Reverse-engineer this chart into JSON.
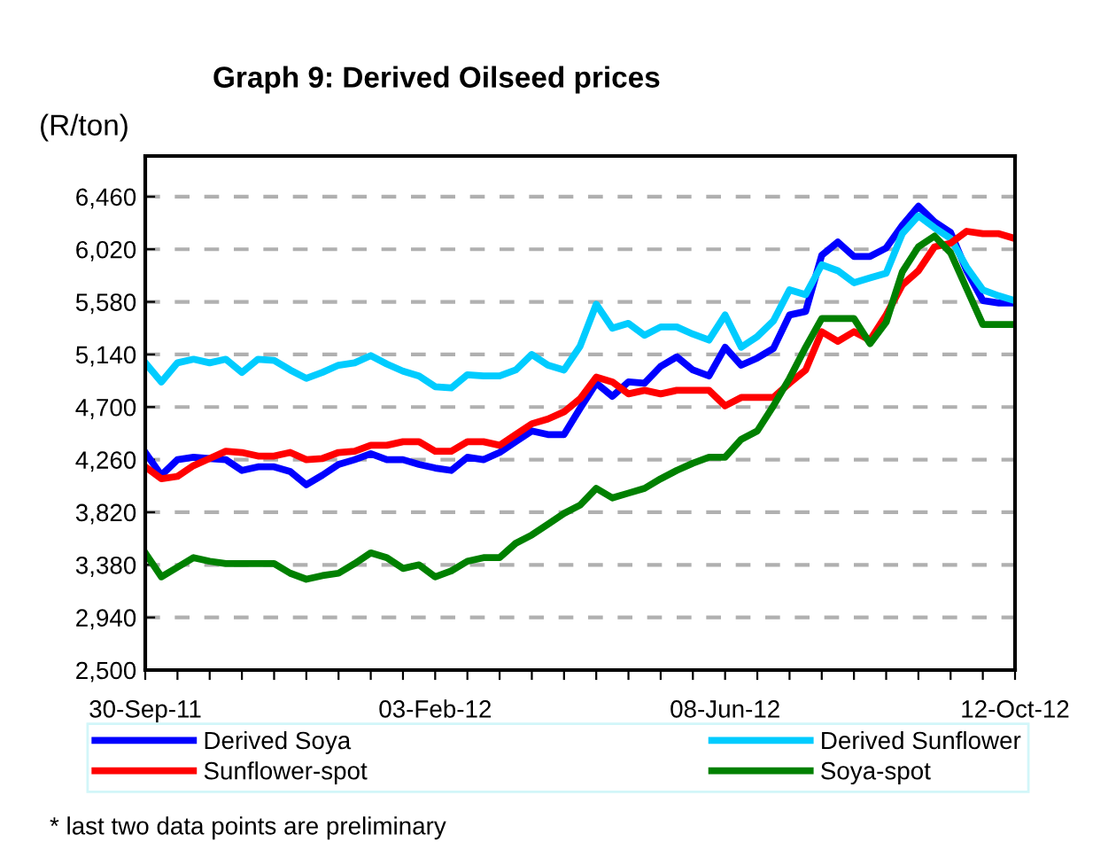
{
  "chart_data": {
    "type": "line",
    "title": "Graph 9: Derived Oilseed prices",
    "ylabel": "(R/ton)",
    "categories": [
      "30-Sep-11",
      null,
      null,
      null,
      null,
      null,
      null,
      null,
      null,
      null,
      null,
      null,
      null,
      null,
      null,
      null,
      null,
      null,
      "03-Feb-12",
      null,
      null,
      null,
      null,
      null,
      null,
      null,
      null,
      null,
      null,
      null,
      null,
      null,
      null,
      null,
      null,
      null,
      "08-Jun-12",
      null,
      null,
      null,
      null,
      null,
      null,
      null,
      null,
      null,
      null,
      null,
      null,
      null,
      null,
      null,
      null,
      null,
      "12-Oct-12"
    ],
    "series": [
      {
        "name": "Derived Soya",
        "color": "#0000ff",
        "values": [
          4320,
          4130,
          4260,
          4280,
          4270,
          4260,
          4170,
          4200,
          4200,
          4160,
          4050,
          4130,
          4220,
          4260,
          4310,
          4260,
          4260,
          4220,
          4190,
          4170,
          4280,
          4260,
          4320,
          4410,
          4500,
          4470,
          4470,
          4690,
          4900,
          4790,
          4910,
          4900,
          5040,
          5120,
          5010,
          4960,
          5200,
          5050,
          5110,
          5190,
          5470,
          5500,
          5970,
          6080,
          5960,
          5960,
          6030,
          6220,
          6380,
          6250,
          6160,
          5840,
          5590,
          5570,
          5570
        ]
      },
      {
        "name": "Derived Sunflower",
        "color": "#00ccff",
        "values": [
          5070,
          4910,
          5070,
          5100,
          5070,
          5100,
          4990,
          5100,
          5090,
          5010,
          4940,
          4990,
          5050,
          5070,
          5130,
          5060,
          5000,
          4960,
          4870,
          4860,
          4970,
          4960,
          4960,
          5010,
          5140,
          5050,
          5010,
          5210,
          5560,
          5360,
          5400,
          5300,
          5370,
          5370,
          5310,
          5260,
          5470,
          5200,
          5290,
          5420,
          5680,
          5640,
          5890,
          5840,
          5740,
          5780,
          5820,
          6150,
          6300,
          6200,
          6110,
          5870,
          5680,
          5630,
          5590
        ]
      },
      {
        "name": "Sunflower-spot",
        "color": "#ff0000",
        "values": [
          4200,
          4100,
          4120,
          4210,
          4270,
          4330,
          4320,
          4290,
          4290,
          4320,
          4260,
          4270,
          4320,
          4330,
          4380,
          4380,
          4410,
          4410,
          4330,
          4330,
          4410,
          4410,
          4380,
          4470,
          4560,
          4600,
          4660,
          4770,
          4950,
          4910,
          4810,
          4840,
          4810,
          4840,
          4840,
          4840,
          4710,
          4780,
          4780,
          4780,
          4900,
          5010,
          5330,
          5250,
          5330,
          5260,
          5470,
          5720,
          5840,
          6040,
          6070,
          6170,
          6150,
          6150,
          6110
        ]
      },
      {
        "name": "Soya-spot",
        "color": "#008000",
        "values": [
          3480,
          3280,
          3360,
          3440,
          3410,
          3390,
          3390,
          3390,
          3390,
          3310,
          3260,
          3290,
          3310,
          3390,
          3480,
          3440,
          3350,
          3380,
          3280,
          3330,
          3410,
          3440,
          3440,
          3560,
          3630,
          3720,
          3810,
          3880,
          4020,
          3940,
          3980,
          4020,
          4100,
          4170,
          4230,
          4280,
          4280,
          4430,
          4500,
          4710,
          4940,
          5200,
          5440,
          5440,
          5440,
          5230,
          5410,
          5830,
          6040,
          6130,
          5990,
          5690,
          5390,
          5390,
          5390
        ]
      }
    ],
    "ylim": [
      2500,
      6800
    ],
    "yticks": [
      {
        "value": 2500,
        "label": "2,500"
      },
      {
        "value": 2940,
        "label": "2,940"
      },
      {
        "value": 3380,
        "label": "3,380"
      },
      {
        "value": 3820,
        "label": "3,820"
      },
      {
        "value": 4260,
        "label": "4,260"
      },
      {
        "value": 4700,
        "label": "4,700"
      },
      {
        "value": 5140,
        "label": "5,140"
      },
      {
        "value": 5580,
        "label": "5,580"
      },
      {
        "value": 6020,
        "label": "6,020"
      },
      {
        "value": 6460,
        "label": "6,460"
      }
    ],
    "grid": "y",
    "line_style": "solid",
    "legend": "bottom",
    "annotations": [
      "* last two data points are preliminary"
    ]
  }
}
